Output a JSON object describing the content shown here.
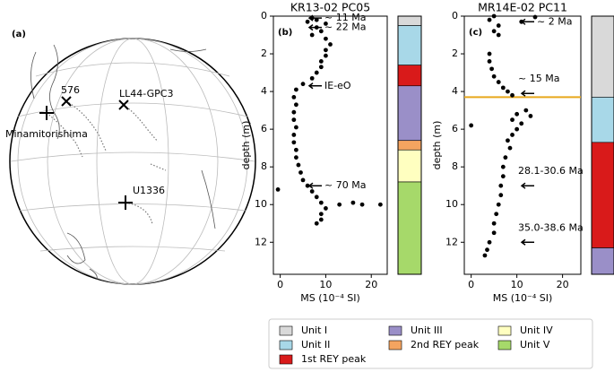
{
  "map": {
    "panel_label": "(a)",
    "sites": [
      "576",
      "LL44-GPC3",
      "Minamitorishima",
      "U1336"
    ]
  },
  "chart_data": [
    {
      "type": "scatter",
      "title": "KR13-02 PC05",
      "panel_label": "(b)",
      "xlabel": "MS (10⁻⁴ SI)",
      "ylabel": "depth (m)",
      "color": "#000000",
      "x": [
        7,
        8,
        6,
        10,
        8,
        9,
        7,
        10,
        11,
        10,
        10,
        9,
        9,
        8,
        7,
        5,
        3.5,
        3,
        3.5,
        3,
        3,
        3.5,
        3,
        3,
        3.5,
        3.5,
        4,
        4.5,
        5,
        6,
        7,
        8,
        9,
        10,
        9,
        9,
        8,
        -0.5,
        13,
        16,
        18,
        22
      ],
      "values": [
        0.1,
        0.2,
        0.3,
        0.4,
        0.6,
        0.8,
        1.0,
        1.2,
        1.5,
        1.8,
        2.1,
        2.4,
        2.7,
        3.0,
        3.3,
        3.6,
        3.9,
        4.3,
        4.7,
        5.1,
        5.5,
        5.9,
        6.3,
        6.7,
        7.1,
        7.5,
        7.9,
        8.3,
        8.7,
        9.0,
        9.3,
        9.6,
        9.9,
        10.2,
        10.5,
        10.8,
        11.0,
        9.2,
        10.0,
        9.9,
        10.0,
        10.0
      ],
      "xlim": [
        -1.5,
        23.5
      ],
      "xticks": [
        0,
        10,
        20
      ],
      "ylim": [
        13.7,
        0
      ],
      "yticks": [
        0,
        2,
        4,
        6,
        8,
        10,
        12
      ],
      "annotations": [
        {
          "text": "~ 11 Ma",
          "depth": 0.1
        },
        {
          "text": "~ 22 Ma",
          "depth": 0.6
        },
        {
          "text": "IE-eO",
          "depth": 3.7
        },
        {
          "text": "~ 70 Ma",
          "depth": 9.0
        }
      ],
      "column": [
        {
          "top": 0,
          "bottom": 0.5,
          "color": "#d9d9d9"
        },
        {
          "top": 0.5,
          "bottom": 2.6,
          "color": "#a8d8e8"
        },
        {
          "top": 2.6,
          "bottom": 3.7,
          "color": "#d91a1a"
        },
        {
          "top": 3.7,
          "bottom": 6.6,
          "color": "#9a8fc8"
        },
        {
          "top": 6.6,
          "bottom": 7.1,
          "color": "#f4a460"
        },
        {
          "top": 7.1,
          "bottom": 8.8,
          "color": "#ffffc0"
        },
        {
          "top": 8.8,
          "bottom": 13.7,
          "color": "#a6d96a"
        }
      ]
    },
    {
      "type": "scatter",
      "title": "MR14E-02 PC11",
      "panel_label": "(c)",
      "xlabel": "MS (10⁻⁴ SI)",
      "ylabel": "depth (m)",
      "color": "#000000",
      "x": [
        5,
        4,
        11,
        14,
        6,
        5,
        6,
        4,
        4,
        4.5,
        5,
        6,
        7,
        8,
        9,
        12,
        10,
        13,
        9,
        11,
        0,
        10,
        9,
        8,
        8.5,
        7.5,
        7,
        7,
        6.5,
        6.5,
        6,
        5.5,
        5,
        5,
        4,
        3.5,
        3
      ],
      "values": [
        0.0,
        0.2,
        0.3,
        0.05,
        0.5,
        0.8,
        1.0,
        2.0,
        2.4,
        2.8,
        3.2,
        3.5,
        3.8,
        4.0,
        4.2,
        5.0,
        5.2,
        5.3,
        5.5,
        5.7,
        5.8,
        6.0,
        6.3,
        6.6,
        7.0,
        7.5,
        8.0,
        8.5,
        9.0,
        9.5,
        10.0,
        10.5,
        11.0,
        11.5,
        12.0,
        12.4,
        12.7
      ],
      "xlim": [
        -1.5,
        24
      ],
      "xticks": [
        0,
        10,
        20
      ],
      "ylim": [
        13.7,
        0
      ],
      "yticks": [
        0,
        2,
        4,
        6,
        8,
        10,
        12
      ],
      "hline": {
        "depth": 4.3,
        "color": "#e8a81c"
      },
      "annotations": [
        {
          "text": "~ 2 Ma",
          "depth": 0.3
        },
        {
          "text": "~ 15 Ma",
          "depth": 4.1
        },
        {
          "text": "28.1-30.6 Ma",
          "depth": 9.0
        },
        {
          "text": "35.0-38.6 Ma",
          "depth": 12.0
        }
      ],
      "column": [
        {
          "top": 0,
          "bottom": 4.3,
          "color": "#d9d9d9"
        },
        {
          "top": 4.3,
          "bottom": 6.7,
          "color": "#a8d8e8"
        },
        {
          "top": 6.7,
          "bottom": 12.3,
          "color": "#d91a1a"
        },
        {
          "top": 12.3,
          "bottom": 13.7,
          "color": "#9a8fc8"
        }
      ]
    }
  ],
  "legend": [
    {
      "name": "Unit I",
      "color": "#d9d9d9"
    },
    {
      "name": "Unit II",
      "color": "#a8d8e8"
    },
    {
      "name": "1st REY peak",
      "color": "#d91a1a"
    },
    {
      "name": "Unit III",
      "color": "#9a8fc8"
    },
    {
      "name": "2nd REY peak",
      "color": "#f4a460"
    },
    {
      "name": "Unit IV",
      "color": "#ffffc0"
    },
    {
      "name": "Unit V",
      "color": "#a6d96a"
    }
  ]
}
